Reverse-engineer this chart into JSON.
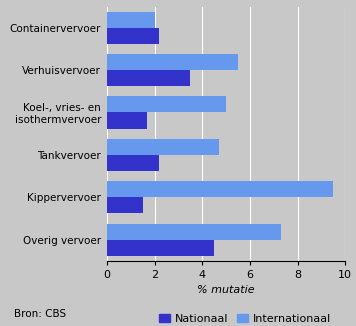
{
  "categories": [
    "Containervervoer",
    "Verhuisvervoer",
    "Koel-, vries- en\nisothermvervoer",
    "Tankvervoer",
    "Kippervervoer",
    "Overig vervoer"
  ],
  "nationaal": [
    2.2,
    3.5,
    1.7,
    2.2,
    1.5,
    4.5
  ],
  "internationaal": [
    2.0,
    5.5,
    5.0,
    4.7,
    9.5,
    7.3
  ],
  "color_nationaal": "#3333cc",
  "color_internationaal": "#6699ee",
  "background_color": "#c8c8c8",
  "xlim": [
    0,
    10
  ],
  "xticks": [
    0,
    2,
    4,
    6,
    8,
    10
  ],
  "xlabel": "% mutatie",
  "legend_labels": [
    "Nationaal",
    "Internationaal"
  ],
  "source": "Bron: CBS",
  "bar_height": 0.38
}
